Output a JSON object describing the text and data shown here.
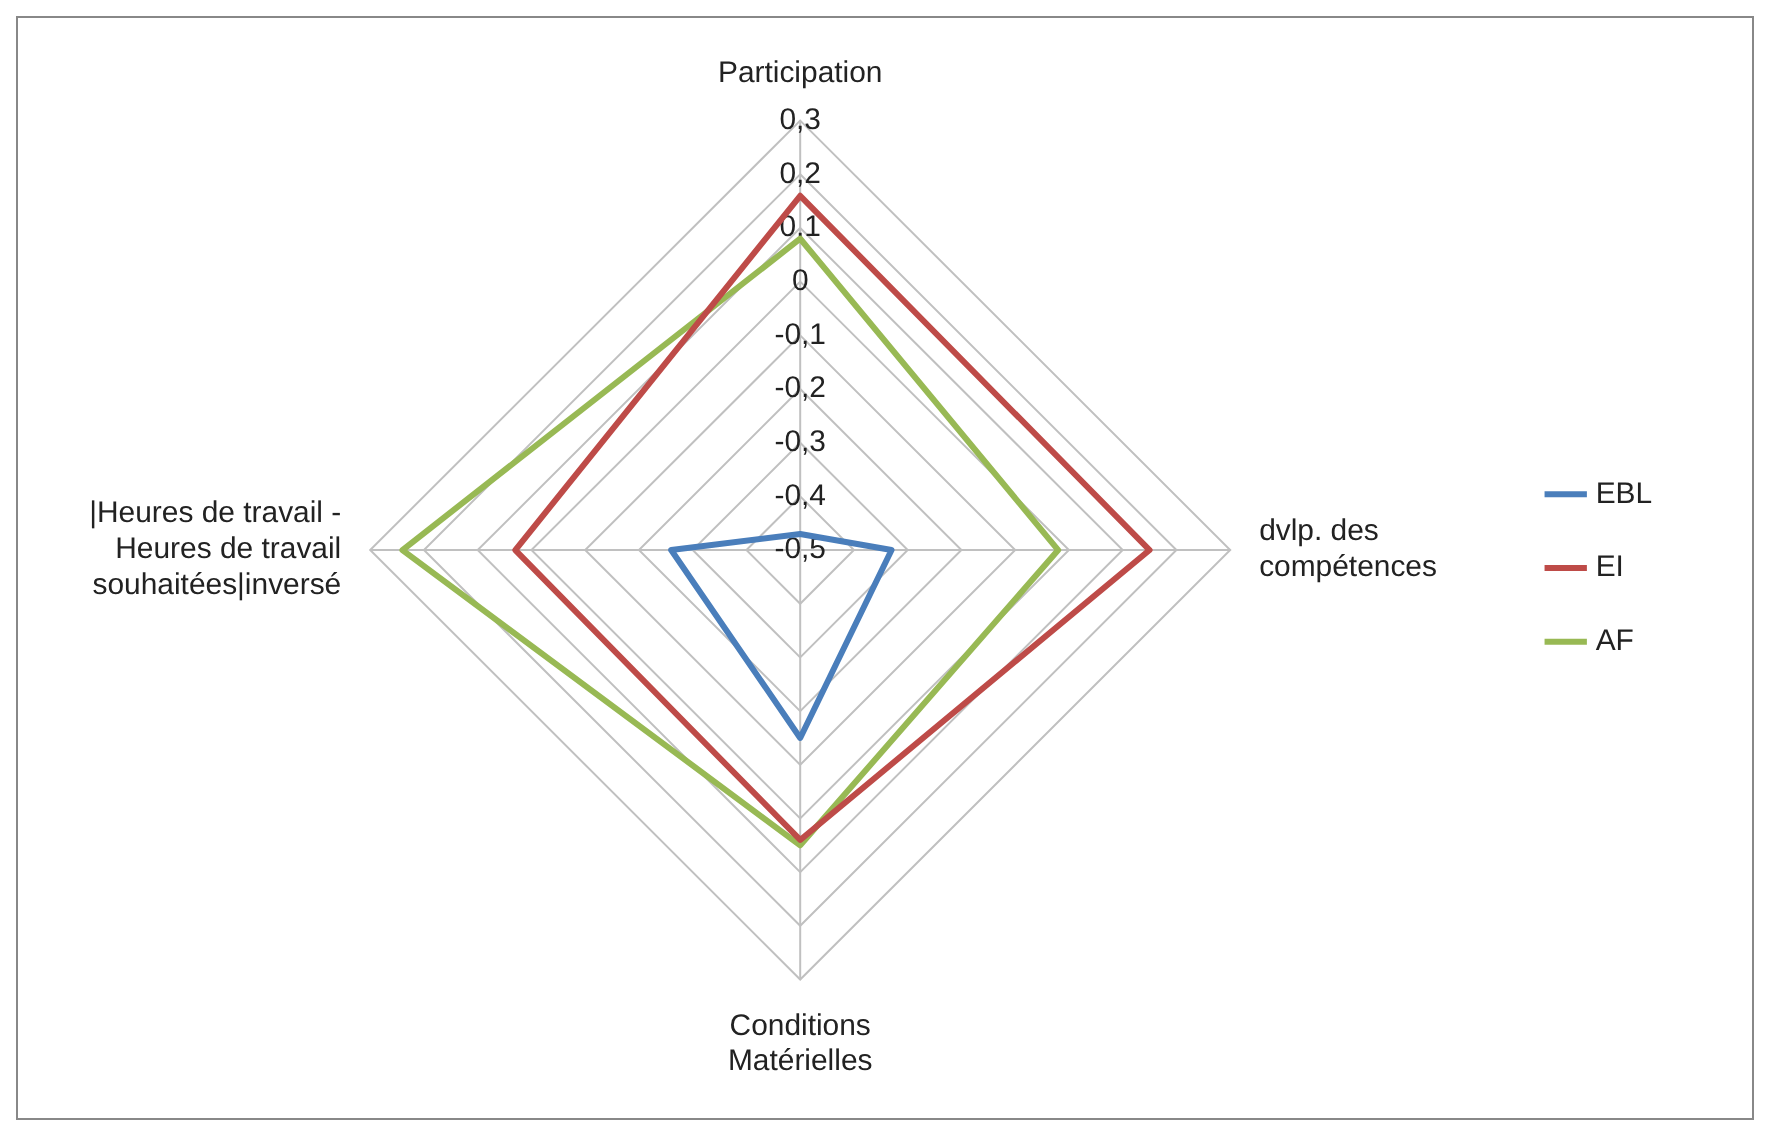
{
  "chart_data": {
    "type": "radar",
    "categories": [
      "Participation",
      "dvlp. des compétences",
      "Conditions Matérielles",
      "|Heures de travail - Heures de travail souhaitées|inversé"
    ],
    "series": [
      {
        "name": "EBL",
        "color": "#4a7ebb",
        "values": [
          -0.47,
          -0.33,
          -0.15,
          -0.26
        ]
      },
      {
        "name": "EI",
        "color": "#be4b48",
        "values": [
          0.16,
          0.15,
          0.04,
          0.03
        ]
      },
      {
        "name": "AF",
        "color": "#98b954",
        "values": [
          0.08,
          -0.02,
          0.05,
          0.24
        ]
      }
    ],
    "ylim": [
      -0.5,
      0.3
    ],
    "yticks": [
      {
        "value": -0.5,
        "label": "-0,5"
      },
      {
        "value": -0.4,
        "label": "-0,4"
      },
      {
        "value": -0.3,
        "label": "-0,3"
      },
      {
        "value": -0.2,
        "label": "-0,2"
      },
      {
        "value": -0.1,
        "label": "-0,1"
      },
      {
        "value": 0,
        "label": "0"
      },
      {
        "value": 0.1,
        "label": "0,1"
      },
      {
        "value": 0.2,
        "label": "0,2"
      },
      {
        "value": 0.3,
        "label": "0,3"
      }
    ],
    "grid": true,
    "legend": "right",
    "marker": "none",
    "line_style": "solid"
  }
}
